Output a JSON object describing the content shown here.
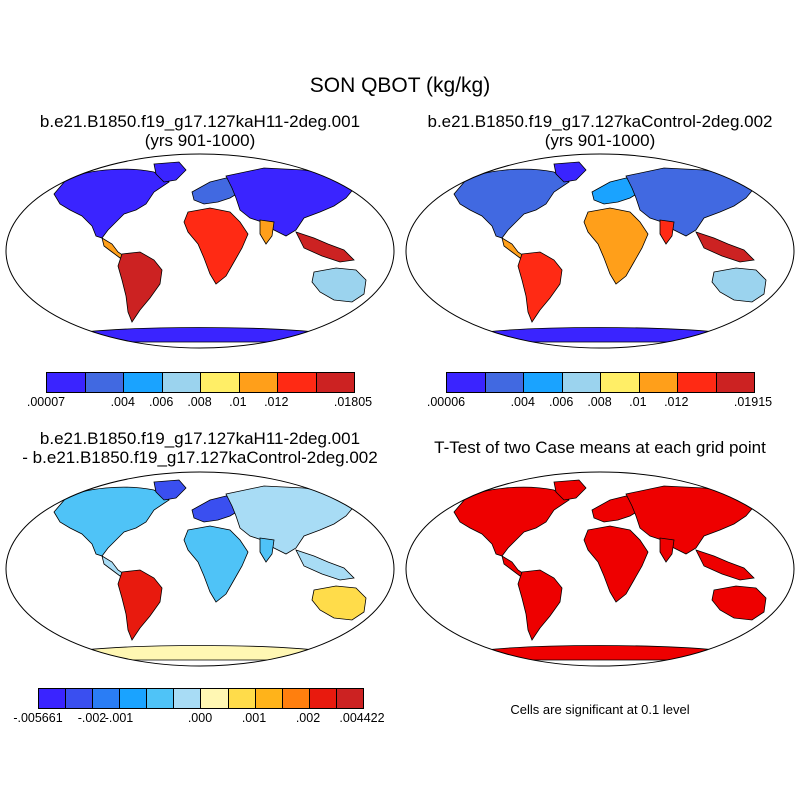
{
  "main_title": "SON QBOT (kg/kg)",
  "panels": [
    {
      "id": "case1",
      "title_line1": "b.e21.B1850.f19_g17.127kaH11-2deg.001",
      "title_line2": "(yrs 901-1000)",
      "colorbar": {
        "colors": [
          "#3a24ff",
          "#4169e1",
          "#1aa3ff",
          "#9bd3ee",
          "#ffee66",
          "#ff9f1a",
          "#ff2a14",
          "#cc2222"
        ],
        "labels": [
          ".00007",
          ".004",
          ".006",
          ".008",
          ".01",
          ".012",
          ".01805"
        ]
      }
    },
    {
      "id": "case2",
      "title_line1": "b.e21.B1850.f19_g17.127kaControl-2deg.002",
      "title_line2": "(yrs 901-1000)",
      "colorbar": {
        "colors": [
          "#3a24ff",
          "#4169e1",
          "#1aa3ff",
          "#9bd3ee",
          "#ffee66",
          "#ff9f1a",
          "#ff2a14",
          "#cc2222"
        ],
        "labels": [
          ".00006",
          ".004",
          ".006",
          ".008",
          ".01",
          ".012",
          ".01915"
        ]
      }
    },
    {
      "id": "diff",
      "title_line1": "b.e21.B1850.f19_g17.127kaH11-2deg.001",
      "title_line2": "- b.e21.B1850.f19_g17.127kaControl-2deg.002",
      "colorbar": {
        "colors": [
          "#3a24ff",
          "#3a4ff0",
          "#2a7df5",
          "#1aa3ff",
          "#4fc3f7",
          "#a8dcf5",
          "#fff7b3",
          "#ffdc4a",
          "#ffb31a",
          "#ff7f0e",
          "#e81a0e",
          "#cc2222"
        ],
        "labels": [
          "-.005661",
          "-.002",
          "-.001",
          ".000",
          ".001",
          ".002",
          ".004422"
        ]
      }
    },
    {
      "id": "ttest",
      "title_line1": "T-Test of two Case means at each grid point",
      "note": "Cells are significant at 0.1 level",
      "fill_color": "#ee0000"
    }
  ]
}
